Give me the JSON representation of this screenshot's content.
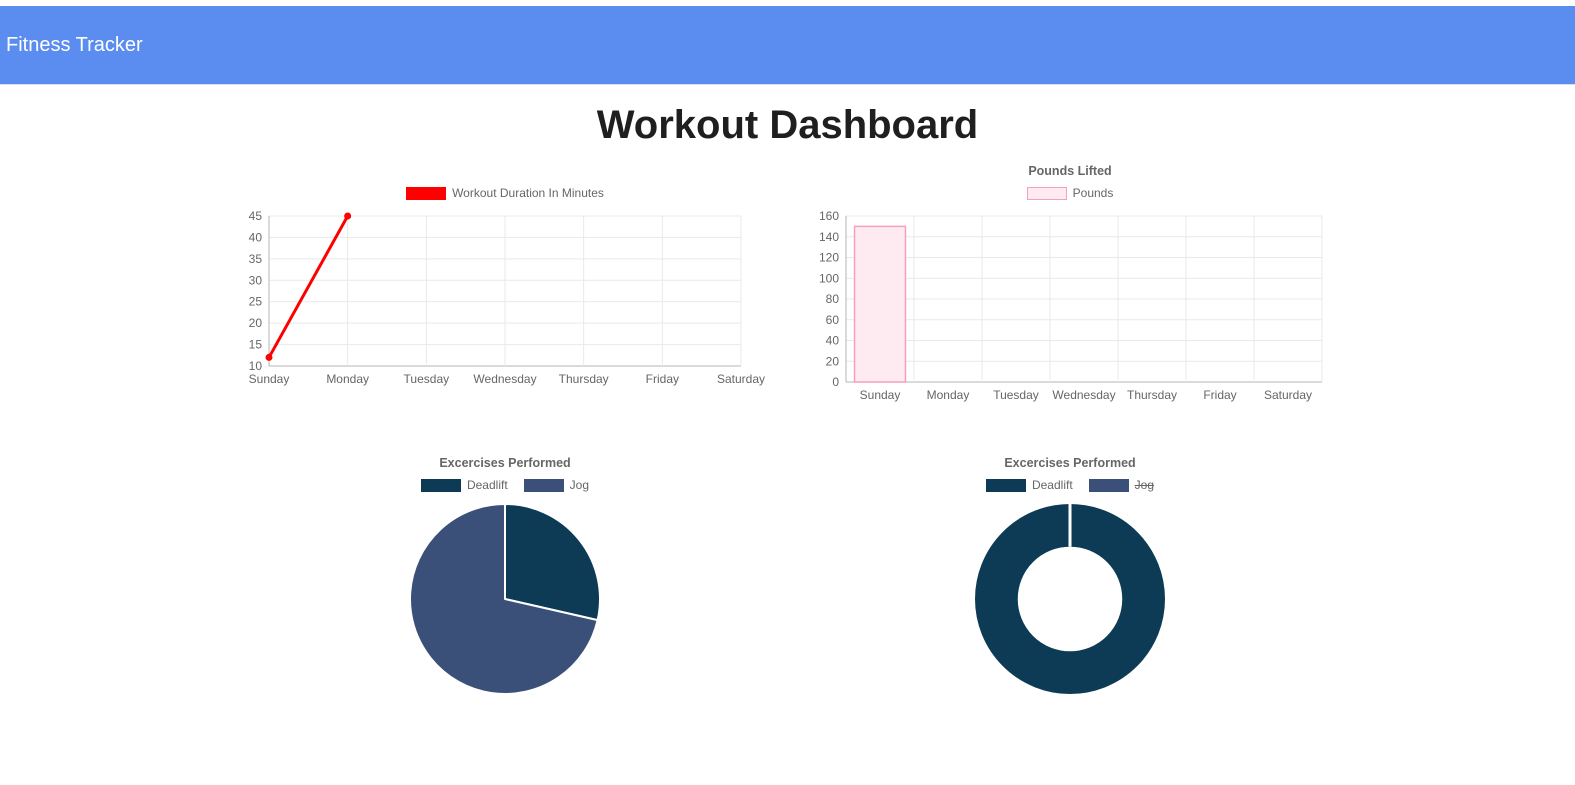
{
  "navbar": {
    "brand": "Fitness Tracker",
    "bg": "#5a8def",
    "text_color": "#ffffff"
  },
  "page": {
    "title": "Workout Dashboard"
  },
  "chart_data": [
    {
      "type": "line",
      "title": "",
      "label": "Workout Duration In Minutes",
      "color": "#ff0000",
      "categories": [
        "Sunday",
        "Monday",
        "Tuesday",
        "Wednesday",
        "Thursday",
        "Friday",
        "Saturday"
      ],
      "values": [
        12,
        45,
        null,
        null,
        null,
        null,
        null
      ],
      "ylim": [
        10,
        45
      ],
      "ystep": 5,
      "grid": true,
      "legend_position": "top"
    },
    {
      "type": "bar",
      "title": "Pounds Lifted",
      "label": "Pounds",
      "fill": "#fdebf1",
      "border": "#f6a1b9",
      "categories": [
        "Sunday",
        "Monday",
        "Tuesday",
        "Wednesday",
        "Thursday",
        "Friday",
        "Saturday"
      ],
      "values": [
        150,
        null,
        null,
        null,
        null,
        null,
        null
      ],
      "ylim": [
        0,
        160
      ],
      "ystep": 20,
      "grid": true,
      "legend_position": "top"
    },
    {
      "type": "pie",
      "title": "Excercises Performed",
      "labels": [
        "Deadlift",
        "Jog"
      ],
      "values": [
        2,
        5
      ],
      "colors": [
        "#0d3b55",
        "#3b5078"
      ],
      "hidden": [
        false,
        false
      ]
    },
    {
      "type": "doughnut",
      "title": "Excercises Performed",
      "labels": [
        "Deadlift",
        "Jog"
      ],
      "values": [
        2,
        5
      ],
      "colors": [
        "#0d3b55",
        "#3b5078"
      ],
      "hidden": [
        false,
        true
      ],
      "cutout": 0.55
    }
  ]
}
